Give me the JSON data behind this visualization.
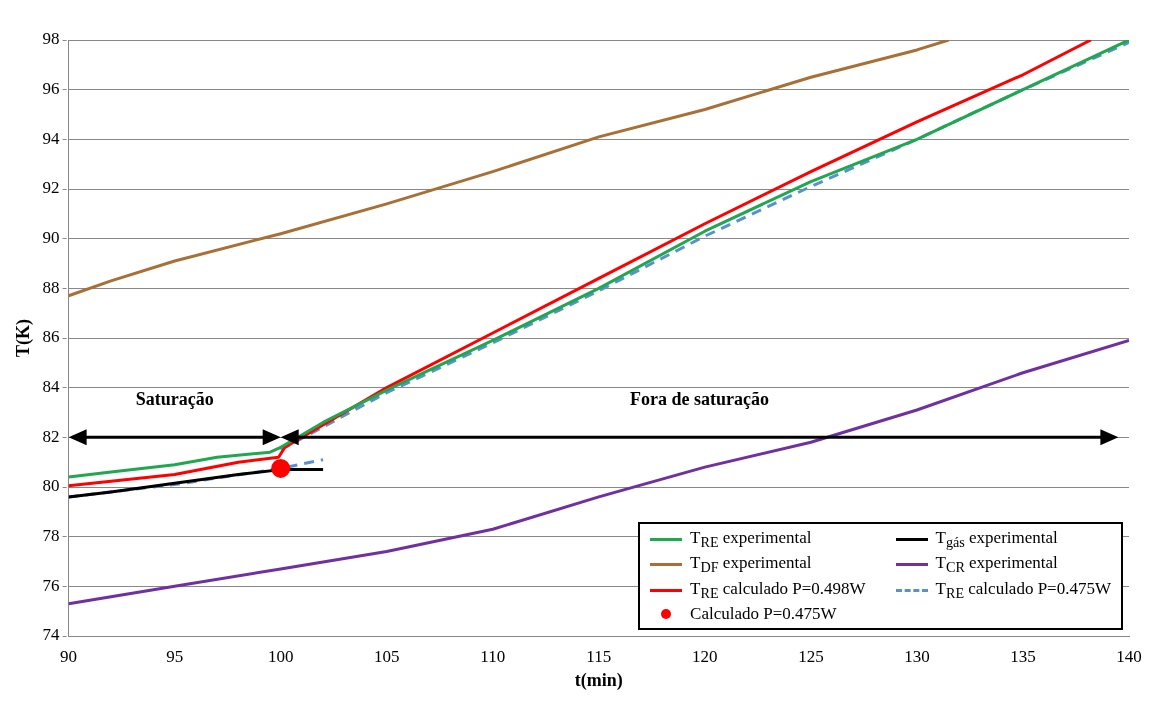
{
  "chart_data": {
    "type": "line",
    "xlabel": "t(min)",
    "ylabel": "T(K)",
    "xlim": [
      90,
      140
    ],
    "xticks": [
      90,
      95,
      100,
      105,
      110,
      115,
      120,
      125,
      130,
      135,
      140
    ],
    "ylim": [
      74,
      98
    ],
    "yticks": [
      74,
      76,
      78,
      80,
      82,
      84,
      86,
      88,
      90,
      92,
      94,
      96,
      98
    ],
    "grid": "y",
    "legend": "bottom right",
    "marker": "none",
    "annotations": [
      "Saturação",
      "Fora de saturação"
    ],
    "series": [
      {
        "name": "T$_{RE}$ experimental",
        "color": "#1fa84f",
        "x": [
          90,
          92,
          95,
          97,
          99.5,
          100,
          102,
          105,
          110,
          115,
          120,
          125,
          130,
          135,
          140
        ],
        "values": [
          80.4,
          80.6,
          80.9,
          81.2,
          81.4,
          81.6,
          82.6,
          83.9,
          85.9,
          88.0,
          90.3,
          92.3,
          94.0,
          96.0,
          98.0
        ]
      },
      {
        "name": "T$_{gás}$ experimental",
        "color": "#000000",
        "x": [
          90,
          92,
          95,
          98,
          100,
          102
        ],
        "values": [
          79.6,
          79.8,
          80.15,
          80.5,
          80.7,
          80.7
        ]
      },
      {
        "name": "T$_{DF}$ experimental",
        "color": "#a87036",
        "x": [
          90,
          92,
          95,
          100,
          105,
          110,
          115,
          120,
          125,
          130,
          131.5
        ],
        "values": [
          87.7,
          88.3,
          89.1,
          90.2,
          91.4,
          92.7,
          94.1,
          95.2,
          96.5,
          97.6,
          98.0
        ]
      },
      {
        "name": "T$_{CR}$ experimental",
        "color": "#7030a0",
        "x": [
          90,
          95,
          100,
          105,
          110,
          115,
          120,
          125,
          130,
          135,
          140
        ],
        "values": [
          75.3,
          76.0,
          76.7,
          77.4,
          78.3,
          79.6,
          80.8,
          81.8,
          83.1,
          84.6,
          85.9
        ]
      },
      {
        "name": "T$_{RE}$ calculado P=0.498W",
        "color": "#ff0000",
        "x": [
          90,
          95,
          98,
          99.9,
          100.2,
          105,
          110,
          115,
          120,
          125,
          130,
          135,
          138.2
        ],
        "values": [
          80.05,
          80.5,
          81.0,
          81.2,
          81.6,
          84.0,
          86.2,
          88.4,
          90.6,
          92.7,
          94.7,
          96.6,
          98.0
        ]
      },
      {
        "name": "T$_{RE}$ calculado P=0.475W",
        "color": "#5b8fd0",
        "line_style": "dashed",
        "x": [
          100,
          105,
          110,
          115,
          120,
          125,
          130,
          135,
          140
        ],
        "values": [
          81.5,
          83.8,
          85.8,
          87.9,
          90.1,
          92.1,
          94.0,
          96.0,
          97.9
        ]
      },
      {
        "color": "#5b8fd0",
        "line_style": "dashed",
        "x": [
          90,
          95,
          100,
          102
        ],
        "values": [
          79.6,
          80.1,
          80.75,
          81.1
        ]
      },
      {
        "name": "Calculado P=0.475W",
        "type": "scatter",
        "marker": "circle",
        "color": "#ff0000",
        "x": [
          100
        ],
        "values": [
          80.75
        ]
      }
    ]
  }
}
